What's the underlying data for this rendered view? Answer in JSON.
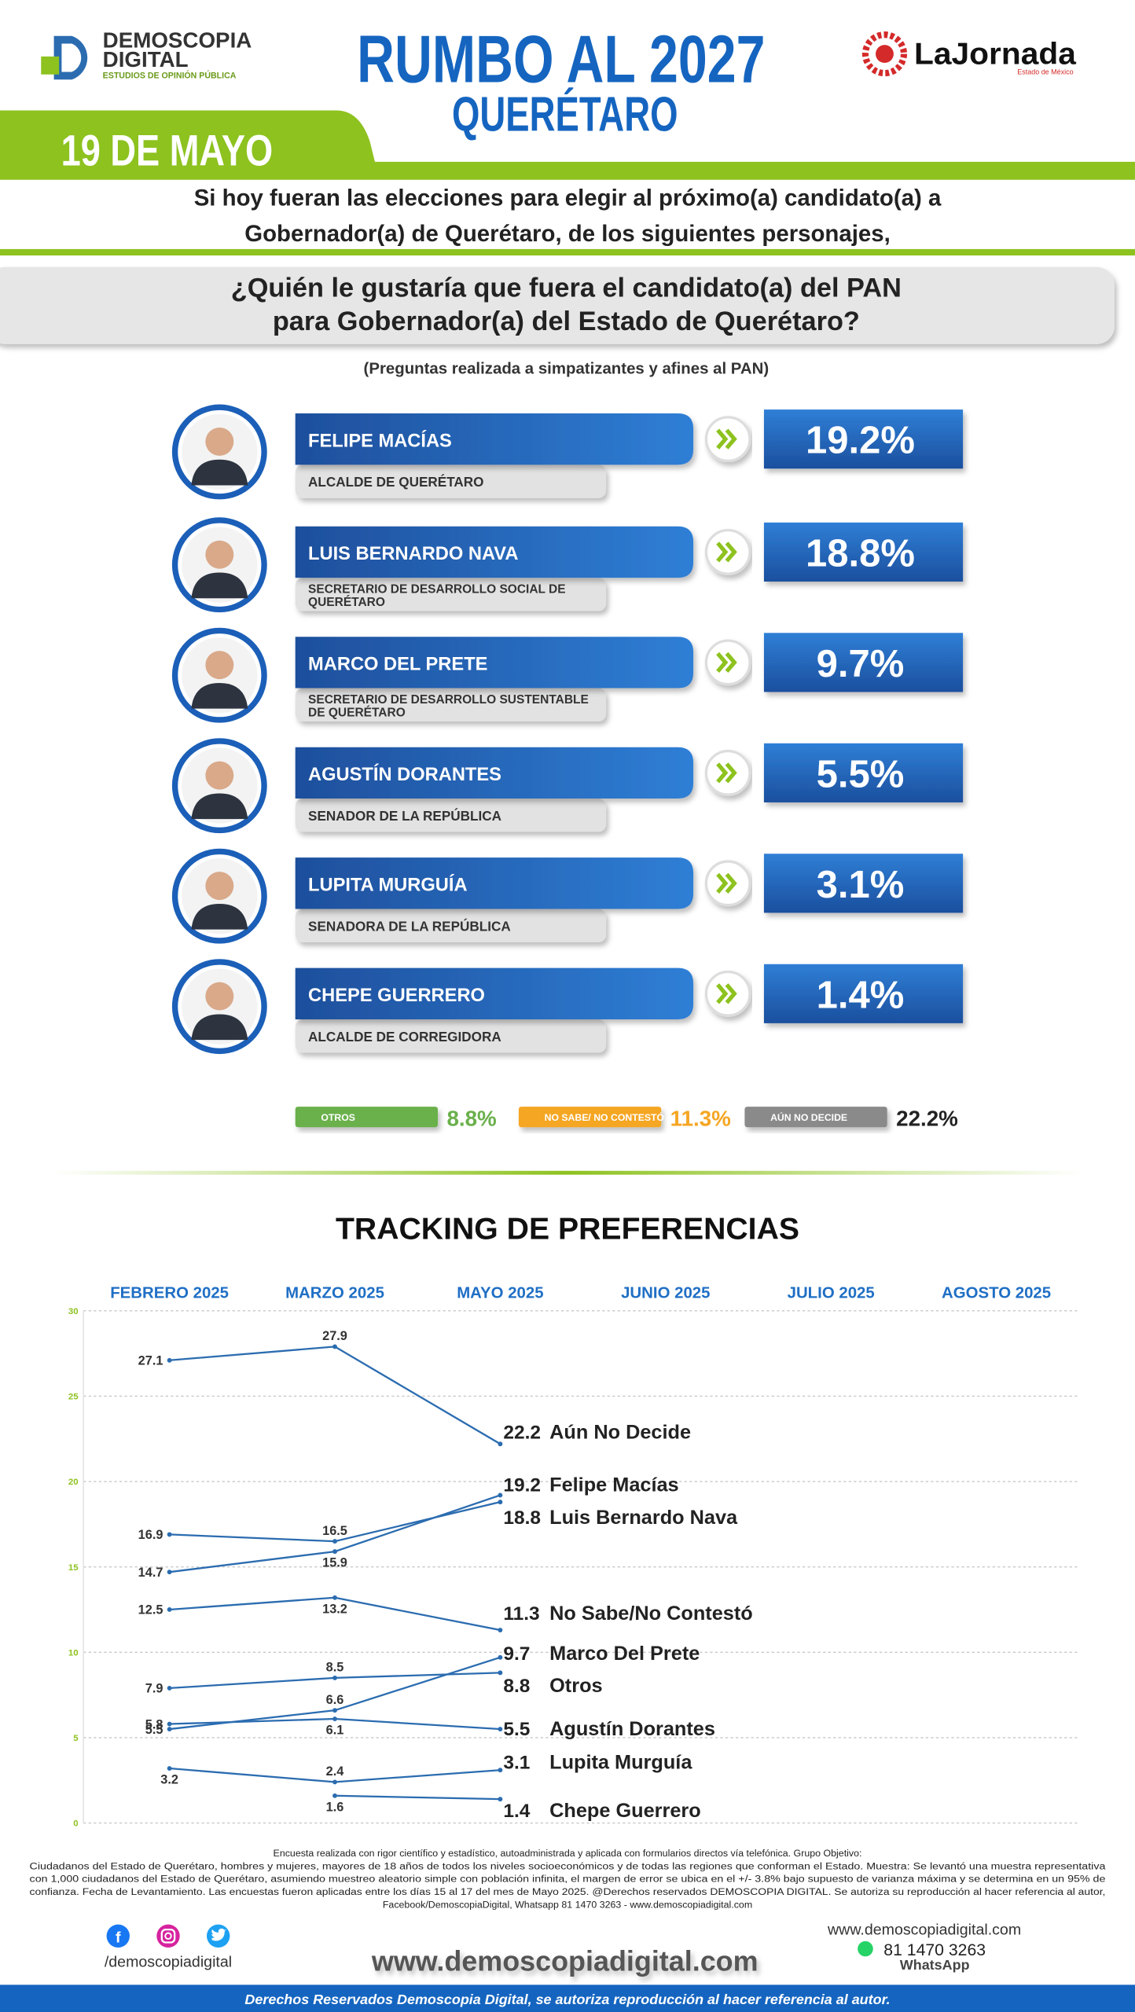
{
  "header": {
    "brand": {
      "name1": "DEMOSCOPIA",
      "name2": "DIGITAL",
      "tagline": "ESTUDIOS DE OPINIÓN PÚBLICA"
    },
    "title": "RUMBO AL 2027",
    "subtitle": "QUERÉTARO",
    "partner": {
      "name": "LaJornada",
      "edition": "Estado de México"
    },
    "date": "19 DE MAYO"
  },
  "intro": [
    "Si hoy fueran las elecciones para elegir al próximo(a) candidato(a) a",
    "Gobernador(a) de Querétaro, de los siguientes personajes,"
  ],
  "question": [
    "¿Quién le gustaría que fuera el candidato(a) del PAN",
    "para Gobernador(a) del Estado de Querétaro?"
  ],
  "note": "(Preguntas realizada a simpatizantes y afines al PAN)",
  "candidates": [
    {
      "name": "FELIPE MACÍAS",
      "role": [
        "ALCALDE DE QUERÉTARO"
      ],
      "value": "19.2%"
    },
    {
      "name": "LUIS BERNARDO NAVA",
      "role": [
        "SECRETARIO DE DESARROLLO SOCIAL DE",
        "QUERÉTARO"
      ],
      "value": "18.8%"
    },
    {
      "name": "MARCO DEL PRETE",
      "role": [
        "SECRETARIO DE DESARROLLO SUSTENTABLE",
        "DE QUERÉTARO"
      ],
      "value": "9.7%"
    },
    {
      "name": "AGUSTÍN DORANTES",
      "role": [
        "SENADOR DE LA REPÚBLICA"
      ],
      "value": "5.5%"
    },
    {
      "name": "LUPITA MURGUÍA",
      "role": [
        "SENADORA DE LA REPÚBLICA"
      ],
      "value": "3.1%"
    },
    {
      "name": "CHEPE GUERRERO",
      "role": [
        "ALCALDE DE CORREGIDORA"
      ],
      "value": "1.4%"
    }
  ],
  "others": [
    {
      "label": "OTROS",
      "value": "8.8%",
      "color": "#6ab04c"
    },
    {
      "label": "NO SABE/ NO CONTESTÓ",
      "value": "11.3%",
      "color": "#f5a623"
    },
    {
      "label": "AÚN NO DECIDE",
      "value": "22.2%",
      "color": "#8a8a8a"
    }
  ],
  "chart_data": {
    "type": "line",
    "title": "TRACKING DE PREFERENCIAS",
    "categories": [
      "FEBRERO 2025",
      "MARZO 2025",
      "MAYO 2025",
      "JUNIO 2025",
      "JULIO 2025",
      "AGOSTO 2025"
    ],
    "ylim": [
      0,
      30
    ],
    "yticks": [
      0,
      5,
      10,
      15,
      20,
      25,
      30
    ],
    "grid": true,
    "series": [
      {
        "name": "Aún No Decide",
        "color": "#2b6cb0",
        "values": [
          27.1,
          27.9,
          22.2,
          null,
          null,
          null
        ]
      },
      {
        "name": "Felipe Macías",
        "color": "#2b6cb0",
        "values": [
          14.7,
          15.9,
          19.2,
          null,
          null,
          null
        ]
      },
      {
        "name": "Luis Bernardo Nava",
        "color": "#2b6cb0",
        "values": [
          16.9,
          16.5,
          18.8,
          null,
          null,
          null
        ]
      },
      {
        "name": "No Sabe/No Contestó",
        "color": "#2b6cb0",
        "values": [
          12.5,
          13.2,
          11.3,
          null,
          null,
          null
        ]
      },
      {
        "name": "Marco Del Prete",
        "color": "#2b6cb0",
        "values": [
          5.5,
          6.6,
          9.7,
          null,
          null,
          null
        ]
      },
      {
        "name": "Otros",
        "color": "#2b6cb0",
        "values": [
          7.9,
          8.5,
          8.8,
          null,
          null,
          null
        ]
      },
      {
        "name": "Agustín Dorantes",
        "color": "#2b6cb0",
        "values": [
          5.8,
          6.1,
          5.5,
          null,
          null,
          null
        ]
      },
      {
        "name": "Lupita Murguía",
        "color": "#2b6cb0",
        "values": [
          3.2,
          2.4,
          3.1,
          null,
          null,
          null
        ]
      },
      {
        "name": "Chepe Guerrero",
        "color": "#2b6cb0",
        "values": [
          null,
          1.6,
          1.4,
          null,
          null,
          null
        ]
      }
    ]
  },
  "footer": {
    "methodology": [
      "Encuesta realizada con rigor científico y estadístico, autoadministrada y aplicada con formularios directos vía telefónica. Grupo Objetivo:",
      "Ciudadanos del Estado de Querétaro, hombres y mujeres, mayores de 18 años de todos los niveles socioeconómicos y de todas las regiones que conforman el Estado. Muestra: Se levantó una muestra representativa",
      "con 1,000 ciudadanos del Estado de Querétaro, asumiendo muestreo aleatorio simple con población infinita, el margen de error se ubica en el +/- 3.8% bajo supuesto de varianza máxima y se determina en un 95% de",
      "confianza. Fecha de Levantamiento. Las encuestas fueron aplicadas entre los días 15 al 17 del mes de Mayo 2025. @Derechos reservados DEMOSCOPIA DIGITAL. Se autoriza su reproducción al hacer referencia al autor,",
      "Facebook/DemoscopiaDigital, Whatsapp 81 1470 3263 - www.demoscopiadigital.com"
    ],
    "social_handle": "/demoscopiadigital",
    "website_main": "www.demoscopiadigital.com",
    "website": "www.demoscopiadigital.com",
    "phone": "81 1470 3263",
    "whatsapp": "WhatsApp",
    "rights": "Derechos Reservados Demoscopia Digital, se autoriza reproducción al hacer referencia al autor."
  }
}
